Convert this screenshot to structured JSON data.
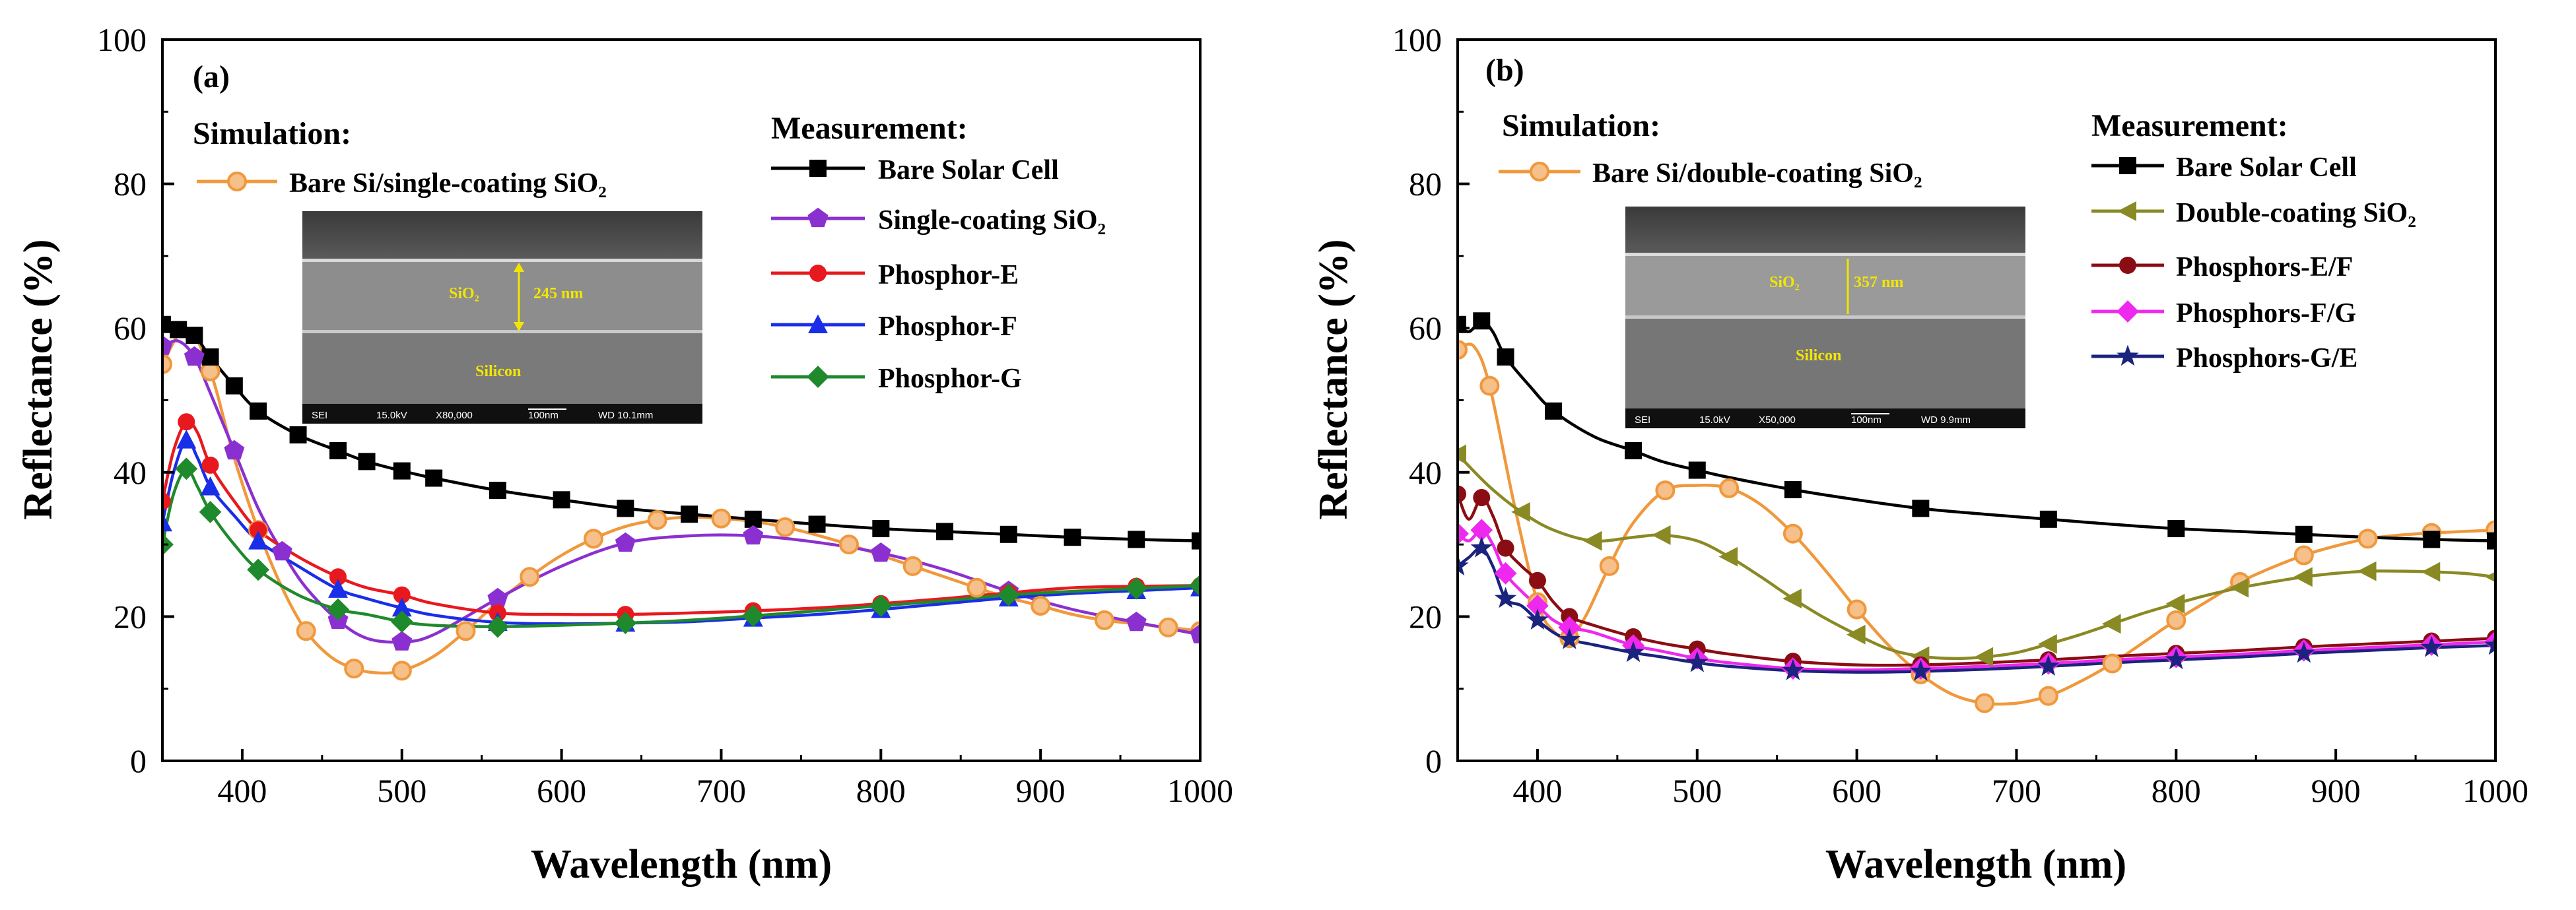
{
  "chart_data": [
    {
      "type": "line",
      "panel_label": "(a)",
      "xlabel": "Wavelength (nm)",
      "ylabel": "Reflectance (%)",
      "xlim": [
        350,
        1000
      ],
      "ylim": [
        0,
        100
      ],
      "x_ticks": [
        400,
        500,
        600,
        700,
        800,
        900,
        1000
      ],
      "y_ticks": [
        0,
        20,
        40,
        60,
        80,
        100
      ],
      "grid": false,
      "simulation_heading": "Simulation:",
      "measurement_heading": "Measurement:",
      "series": [
        {
          "group": "simulation",
          "name": "Bare Si/single-coating SiO₂",
          "color": "#f0983c",
          "marker": "circle-open",
          "x": [
            350,
            365,
            380,
            395,
            410,
            425,
            440,
            455,
            470,
            485,
            500,
            520,
            540,
            560,
            580,
            600,
            620,
            640,
            660,
            680,
            700,
            720,
            740,
            760,
            780,
            800,
            820,
            840,
            860,
            880,
            900,
            920,
            940,
            960,
            980,
            1000
          ],
          "y": [
            55,
            60,
            54,
            42,
            32,
            24,
            18,
            14.5,
            12.8,
            12.2,
            12.5,
            14.5,
            18,
            22,
            25.5,
            28.5,
            30.8,
            32.5,
            33.4,
            33.8,
            33.6,
            33.2,
            32.4,
            31.3,
            30,
            28.5,
            27,
            25.5,
            24,
            22.6,
            21.5,
            20.3,
            19.5,
            19,
            18.5,
            18
          ]
        },
        {
          "group": "measurement",
          "name": "Bare Solar Cell",
          "color": "#000000",
          "marker": "square",
          "x": [
            350,
            360,
            370,
            380,
            395,
            410,
            435,
            460,
            478,
            500,
            520,
            560,
            600,
            640,
            680,
            720,
            760,
            800,
            840,
            880,
            920,
            960,
            1000
          ],
          "y": [
            60.5,
            59.8,
            59,
            56,
            52,
            48.5,
            45.2,
            43,
            41.5,
            40.2,
            39.2,
            37.5,
            36.2,
            35,
            34.2,
            33.5,
            32.8,
            32.2,
            31.8,
            31.4,
            31,
            30.7,
            30.5
          ]
        },
        {
          "group": "measurement",
          "name": "Single-coating SiO₂",
          "color": "#8b30d0",
          "marker": "pentagon",
          "x": [
            350,
            360,
            370,
            380,
            395,
            410,
            425,
            440,
            460,
            478,
            500,
            520,
            560,
            600,
            640,
            680,
            720,
            760,
            800,
            840,
            880,
            920,
            960,
            1000
          ],
          "y": [
            57.5,
            58.2,
            56,
            51,
            43,
            35,
            29,
            24,
            19.5,
            17,
            16.5,
            17.5,
            22.5,
            27,
            30.2,
            31.2,
            31.2,
            30.3,
            28.8,
            26.5,
            23.5,
            21,
            19.2,
            17.5
          ]
        },
        {
          "group": "measurement",
          "name": "Phosphor-E",
          "color": "#e8191e",
          "marker": "circle",
          "x": [
            350,
            357,
            365,
            372,
            380,
            395,
            410,
            435,
            460,
            478,
            500,
            520,
            560,
            600,
            640,
            680,
            720,
            760,
            800,
            840,
            880,
            920,
            960,
            1000
          ],
          "y": [
            36,
            43,
            47,
            45.5,
            41,
            36,
            32,
            28.3,
            25.5,
            24,
            23,
            21.8,
            20.5,
            20.3,
            20.3,
            20.5,
            20.8,
            21.2,
            21.8,
            22.5,
            23.3,
            24,
            24.2,
            24.3
          ]
        },
        {
          "group": "measurement",
          "name": "Phosphor-F",
          "color": "#1a2ee8",
          "marker": "triangle",
          "x": [
            350,
            357,
            365,
            372,
            380,
            395,
            410,
            435,
            460,
            478,
            500,
            520,
            560,
            600,
            640,
            680,
            720,
            760,
            800,
            840,
            880,
            920,
            960,
            1000
          ],
          "y": [
            33,
            40,
            44.5,
            42,
            38,
            34,
            30.5,
            27,
            23.8,
            22.5,
            21.2,
            20.2,
            19.2,
            19,
            19.1,
            19.3,
            19.8,
            20.3,
            21,
            21.8,
            22.6,
            23.2,
            23.6,
            24
          ]
        },
        {
          "group": "measurement",
          "name": "Phosphor-G",
          "color": "#1f8a2c",
          "marker": "diamond",
          "x": [
            350,
            357,
            365,
            372,
            380,
            395,
            410,
            435,
            460,
            478,
            500,
            520,
            560,
            600,
            640,
            680,
            720,
            760,
            800,
            840,
            880,
            920,
            960,
            1000
          ],
          "y": [
            30,
            37,
            40.5,
            38,
            34.5,
            30,
            26.5,
            23,
            21,
            20.3,
            19.3,
            18.8,
            18.6,
            18.8,
            19.1,
            19.5,
            20.1,
            20.8,
            21.5,
            22.2,
            23,
            23.5,
            23.9,
            24.3
          ]
        }
      ],
      "inset": {
        "layer_label": "SiO₂",
        "thickness_label": "245 nm",
        "substrate_label": "Silicon",
        "info_bar": [
          "SEI",
          "15.0kV",
          "X80,000",
          "100nm",
          "WD 10.1mm"
        ]
      }
    },
    {
      "type": "line",
      "panel_label": "(b)",
      "xlabel": "Wavelength (nm)",
      "ylabel": "Reflectance (%)",
      "xlim": [
        350,
        1000
      ],
      "ylim": [
        0,
        100
      ],
      "x_ticks": [
        400,
        500,
        600,
        700,
        800,
        900,
        1000
      ],
      "y_ticks": [
        0,
        20,
        40,
        60,
        80,
        100
      ],
      "grid": false,
      "simulation_heading": "Simulation:",
      "measurement_heading": "Measurement:",
      "series": [
        {
          "group": "simulation",
          "name": "Bare Si/double-coating SiO₂",
          "color": "#f0983c",
          "marker": "circle-open",
          "x": [
            350,
            360,
            370,
            385,
            400,
            410,
            420,
            430,
            445,
            460,
            480,
            500,
            520,
            540,
            560,
            580,
            600,
            620,
            640,
            660,
            680,
            700,
            720,
            740,
            760,
            780,
            800,
            820,
            840,
            860,
            880,
            900,
            920,
            940,
            960,
            980,
            1000
          ],
          "y": [
            57,
            57.5,
            52,
            36,
            22,
            18,
            17,
            20,
            27,
            33,
            37.5,
            38.2,
            37.8,
            35.5,
            31.5,
            26.5,
            21,
            16,
            12,
            9.2,
            8,
            8,
            9,
            11,
            13.5,
            16.5,
            19.5,
            22.2,
            24.8,
            26.8,
            28.5,
            29.8,
            30.8,
            31.3,
            31.6,
            31.8,
            32
          ]
        },
        {
          "group": "measurement",
          "name": "Bare Solar Cell",
          "color": "#000000",
          "marker": "square",
          "x": [
            350,
            357,
            365,
            372,
            380,
            395,
            410,
            435,
            460,
            478,
            500,
            520,
            560,
            600,
            640,
            680,
            720,
            760,
            800,
            840,
            880,
            920,
            960,
            1000
          ],
          "y": [
            60.5,
            59.5,
            61,
            59.5,
            56,
            52,
            48.5,
            45,
            43,
            41.5,
            40.3,
            39.3,
            37.6,
            36.2,
            35,
            34.2,
            33.5,
            32.8,
            32.2,
            31.8,
            31.4,
            31,
            30.7,
            30.5
          ]
        },
        {
          "group": "measurement",
          "name": "Double-coating SiO₂",
          "color": "#8a8a25",
          "marker": "triangle-left",
          "x": [
            350,
            370,
            390,
            410,
            435,
            460,
            478,
            500,
            520,
            540,
            560,
            580,
            600,
            620,
            640,
            660,
            680,
            700,
            720,
            740,
            760,
            780,
            800,
            820,
            840,
            860,
            880,
            900,
            920,
            940,
            960,
            980,
            1000
          ],
          "y": [
            42.5,
            38,
            34.5,
            32,
            30.5,
            31,
            31.3,
            30.5,
            28.3,
            25.5,
            22.5,
            19.8,
            17.5,
            15.5,
            14.5,
            14.2,
            14.4,
            15,
            16.2,
            17.5,
            19,
            20.5,
            21.8,
            23,
            24,
            24.8,
            25.5,
            26,
            26.3,
            26.3,
            26.2,
            26,
            25.5
          ]
        },
        {
          "group": "measurement",
          "name": "Phosphors-E/F",
          "color": "#8b0d14",
          "marker": "circle",
          "x": [
            350,
            357,
            365,
            372,
            380,
            390,
            400,
            410,
            420,
            435,
            460,
            478,
            500,
            520,
            560,
            600,
            640,
            680,
            720,
            760,
            800,
            840,
            880,
            920,
            960,
            1000
          ],
          "y": [
            37,
            33.5,
            36.5,
            34,
            29.5,
            27,
            25,
            22,
            20,
            18.8,
            17.2,
            16.3,
            15.5,
            14.8,
            13.8,
            13.3,
            13.3,
            13.6,
            14,
            14.5,
            14.9,
            15.3,
            15.8,
            16.2,
            16.6,
            17
          ]
        },
        {
          "group": "measurement",
          "name": "Phosphors-F/G",
          "color": "#ee28ee",
          "marker": "diamond",
          "x": [
            350,
            357,
            365,
            372,
            380,
            390,
            400,
            410,
            420,
            435,
            460,
            478,
            500,
            520,
            560,
            600,
            640,
            680,
            720,
            760,
            800,
            840,
            880,
            920,
            960,
            1000
          ],
          "y": [
            31.5,
            30.5,
            32,
            30,
            26,
            23.5,
            21.5,
            19.5,
            18.5,
            17.8,
            16,
            15.2,
            14.2,
            13.6,
            12.8,
            12.6,
            12.8,
            13.1,
            13.5,
            14,
            14.4,
            14.8,
            15.3,
            15.7,
            16.1,
            16.5
          ]
        },
        {
          "group": "measurement",
          "name": "Phosphors-G/E",
          "color": "#1a237e",
          "marker": "star",
          "x": [
            350,
            357,
            365,
            372,
            380,
            390,
            400,
            410,
            420,
            435,
            460,
            478,
            500,
            520,
            560,
            600,
            640,
            680,
            720,
            760,
            800,
            840,
            880,
            920,
            960,
            1000
          ],
          "y": [
            27,
            28.2,
            29.5,
            27,
            22.5,
            21.5,
            19.5,
            17.8,
            16.8,
            16.1,
            15,
            14.4,
            13.6,
            13.1,
            12.5,
            12.3,
            12.4,
            12.7,
            13.1,
            13.6,
            14,
            14.4,
            14.9,
            15.3,
            15.7,
            16
          ]
        }
      ],
      "inset": {
        "layer_label": "SiO₂",
        "thickness_label": "357 nm",
        "substrate_label": "Silicon",
        "info_bar": [
          "SEI",
          "15.0kV",
          "X50,000",
          "100nm",
          "WD 9.9mm"
        ]
      }
    }
  ]
}
